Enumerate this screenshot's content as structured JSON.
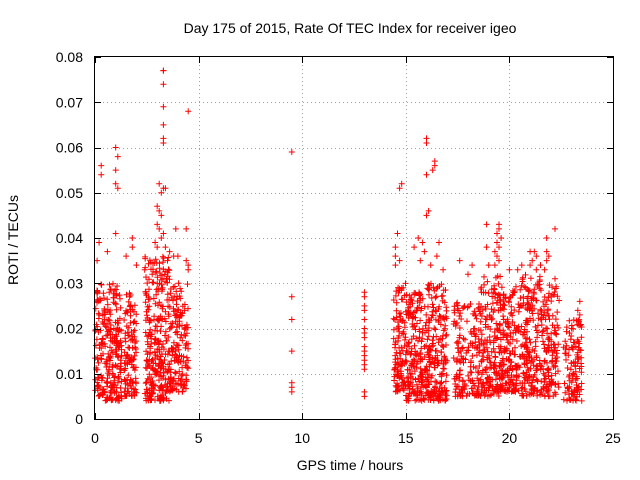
{
  "chart_data": {
    "type": "scatter",
    "title": "Day 175 of 2015, Rate Of TEC Index for receiver igeo",
    "xlabel": "GPS time / hours",
    "ylabel": "ROTI / TECUs",
    "xlim": [
      0,
      25
    ],
    "ylim": [
      0,
      0.08
    ],
    "xticks": [
      "0",
      "5",
      "10",
      "15",
      "20",
      "25"
    ],
    "yticks": [
      "0",
      "0.01",
      "0.02",
      "0.03",
      "0.04",
      "0.05",
      "0.06",
      "0.07",
      "0.08"
    ],
    "grid": true,
    "marker": "+",
    "color": "#ff0000",
    "clusters": [
      {
        "x_range": [
          0.0,
          0.5
        ],
        "y_range": [
          0.005,
          0.03
        ],
        "count": 90
      },
      {
        "x_range": [
          0.5,
          1.3
        ],
        "y_range": [
          0.004,
          0.03
        ],
        "count": 170
      },
      {
        "x_range": [
          1.4,
          2.0
        ],
        "y_range": [
          0.005,
          0.028
        ],
        "count": 110
      },
      {
        "x_range": [
          2.4,
          3.6
        ],
        "y_range": [
          0.004,
          0.036
        ],
        "count": 280
      },
      {
        "x_range": [
          3.6,
          4.5
        ],
        "y_range": [
          0.006,
          0.03
        ],
        "count": 150
      },
      {
        "x_range": [
          14.4,
          15.0
        ],
        "y_range": [
          0.006,
          0.03
        ],
        "count": 110
      },
      {
        "x_range": [
          15.0,
          16.0
        ],
        "y_range": [
          0.004,
          0.028
        ],
        "count": 190
      },
      {
        "x_range": [
          16.0,
          17.0
        ],
        "y_range": [
          0.004,
          0.03
        ],
        "count": 200
      },
      {
        "x_range": [
          17.3,
          18.6
        ],
        "y_range": [
          0.005,
          0.026
        ],
        "count": 160
      },
      {
        "x_range": [
          18.6,
          19.6
        ],
        "y_range": [
          0.005,
          0.032
        ],
        "count": 190
      },
      {
        "x_range": [
          19.6,
          20.6
        ],
        "y_range": [
          0.006,
          0.03
        ],
        "count": 170
      },
      {
        "x_range": [
          20.6,
          21.5
        ],
        "y_range": [
          0.005,
          0.032
        ],
        "count": 170
      },
      {
        "x_range": [
          21.5,
          22.4
        ],
        "y_range": [
          0.005,
          0.03
        ],
        "count": 140
      },
      {
        "x_range": [
          22.6,
          23.5
        ],
        "y_range": [
          0.004,
          0.022
        ],
        "count": 110
      }
    ],
    "points": [
      [
        0.3,
        0.056
      ],
      [
        0.3,
        0.054
      ],
      [
        0.2,
        0.039
      ],
      [
        0.1,
        0.035
      ],
      [
        0.6,
        0.037
      ],
      [
        1.0,
        0.06
      ],
      [
        1.1,
        0.058
      ],
      [
        1.0,
        0.055
      ],
      [
        1.0,
        0.052
      ],
      [
        1.1,
        0.051
      ],
      [
        1.0,
        0.041
      ],
      [
        1.8,
        0.04
      ],
      [
        1.8,
        0.038
      ],
      [
        1.5,
        0.036
      ],
      [
        2.0,
        0.034
      ],
      [
        2.4,
        0.033
      ],
      [
        3.3,
        0.077
      ],
      [
        3.3,
        0.077
      ],
      [
        3.3,
        0.074
      ],
      [
        3.3,
        0.069
      ],
      [
        3.3,
        0.065
      ],
      [
        3.3,
        0.062
      ],
      [
        3.3,
        0.061
      ],
      [
        3.1,
        0.052
      ],
      [
        3.3,
        0.051
      ],
      [
        3.4,
        0.051
      ],
      [
        3.2,
        0.05
      ],
      [
        3.0,
        0.047
      ],
      [
        3.1,
        0.046
      ],
      [
        3.2,
        0.045
      ],
      [
        3.0,
        0.043
      ],
      [
        3.1,
        0.042
      ],
      [
        3.3,
        0.041
      ],
      [
        3.2,
        0.04
      ],
      [
        2.9,
        0.039
      ],
      [
        3.0,
        0.038
      ],
      [
        3.4,
        0.038
      ],
      [
        3.6,
        0.037
      ],
      [
        3.8,
        0.036
      ],
      [
        4.0,
        0.036
      ],
      [
        3.5,
        0.035
      ],
      [
        4.4,
        0.035
      ],
      [
        4.5,
        0.034
      ],
      [
        4.5,
        0.033
      ],
      [
        3.9,
        0.042
      ],
      [
        4.4,
        0.042
      ],
      [
        4.5,
        0.068
      ],
      [
        9.5,
        0.059
      ],
      [
        9.5,
        0.027
      ],
      [
        9.5,
        0.022
      ],
      [
        9.5,
        0.015
      ],
      [
        9.5,
        0.008
      ],
      [
        9.5,
        0.007
      ],
      [
        9.5,
        0.006
      ],
      [
        13.0,
        0.028
      ],
      [
        13.0,
        0.027
      ],
      [
        13.0,
        0.025
      ],
      [
        13.0,
        0.024
      ],
      [
        13.0,
        0.022
      ],
      [
        13.0,
        0.02
      ],
      [
        13.0,
        0.019
      ],
      [
        13.0,
        0.018
      ],
      [
        13.0,
        0.016
      ],
      [
        13.0,
        0.015
      ],
      [
        13.0,
        0.014
      ],
      [
        13.0,
        0.013
      ],
      [
        13.0,
        0.012
      ],
      [
        13.0,
        0.011
      ],
      [
        13.0,
        0.006
      ],
      [
        13.0,
        0.005
      ],
      [
        14.8,
        0.052
      ],
      [
        14.7,
        0.051
      ],
      [
        14.6,
        0.041
      ],
      [
        14.5,
        0.038
      ],
      [
        14.5,
        0.036
      ],
      [
        14.7,
        0.035
      ],
      [
        14.5,
        0.034
      ],
      [
        16.0,
        0.062
      ],
      [
        16.0,
        0.061
      ],
      [
        16.4,
        0.057
      ],
      [
        16.4,
        0.056
      ],
      [
        16.3,
        0.055
      ],
      [
        16.0,
        0.054
      ],
      [
        16.1,
        0.046
      ],
      [
        16.0,
        0.045
      ],
      [
        15.6,
        0.04
      ],
      [
        15.8,
        0.039
      ],
      [
        16.6,
        0.039
      ],
      [
        15.4,
        0.038
      ],
      [
        15.9,
        0.037
      ],
      [
        16.5,
        0.036
      ],
      [
        15.7,
        0.035
      ],
      [
        16.2,
        0.034
      ],
      [
        16.8,
        0.033
      ],
      [
        17.6,
        0.035
      ],
      [
        18.2,
        0.034
      ],
      [
        18.0,
        0.032
      ],
      [
        18.9,
        0.043
      ],
      [
        19.5,
        0.043
      ],
      [
        19.5,
        0.042
      ],
      [
        19.4,
        0.041
      ],
      [
        19.6,
        0.04
      ],
      [
        19.4,
        0.039
      ],
      [
        18.9,
        0.038
      ],
      [
        19.5,
        0.038
      ],
      [
        19.3,
        0.037
      ],
      [
        19.4,
        0.036
      ],
      [
        19.5,
        0.035
      ],
      [
        19.0,
        0.034
      ],
      [
        19.3,
        0.034
      ],
      [
        20.6,
        0.034
      ],
      [
        20.0,
        0.033
      ],
      [
        20.4,
        0.033
      ],
      [
        21.0,
        0.037
      ],
      [
        21.2,
        0.037
      ],
      [
        21.3,
        0.036
      ],
      [
        21.1,
        0.035
      ],
      [
        21.8,
        0.035
      ],
      [
        21.0,
        0.034
      ],
      [
        21.5,
        0.034
      ],
      [
        21.3,
        0.033
      ],
      [
        22.2,
        0.042
      ],
      [
        21.8,
        0.04
      ],
      [
        21.8,
        0.037
      ],
      [
        21.9,
        0.036
      ],
      [
        21.7,
        0.033
      ],
      [
        22.2,
        0.031
      ],
      [
        23.4,
        0.026
      ],
      [
        23.3,
        0.024
      ],
      [
        23.4,
        0.023
      ],
      [
        23.0,
        0.02
      ],
      [
        22.9,
        0.019
      ]
    ]
  }
}
